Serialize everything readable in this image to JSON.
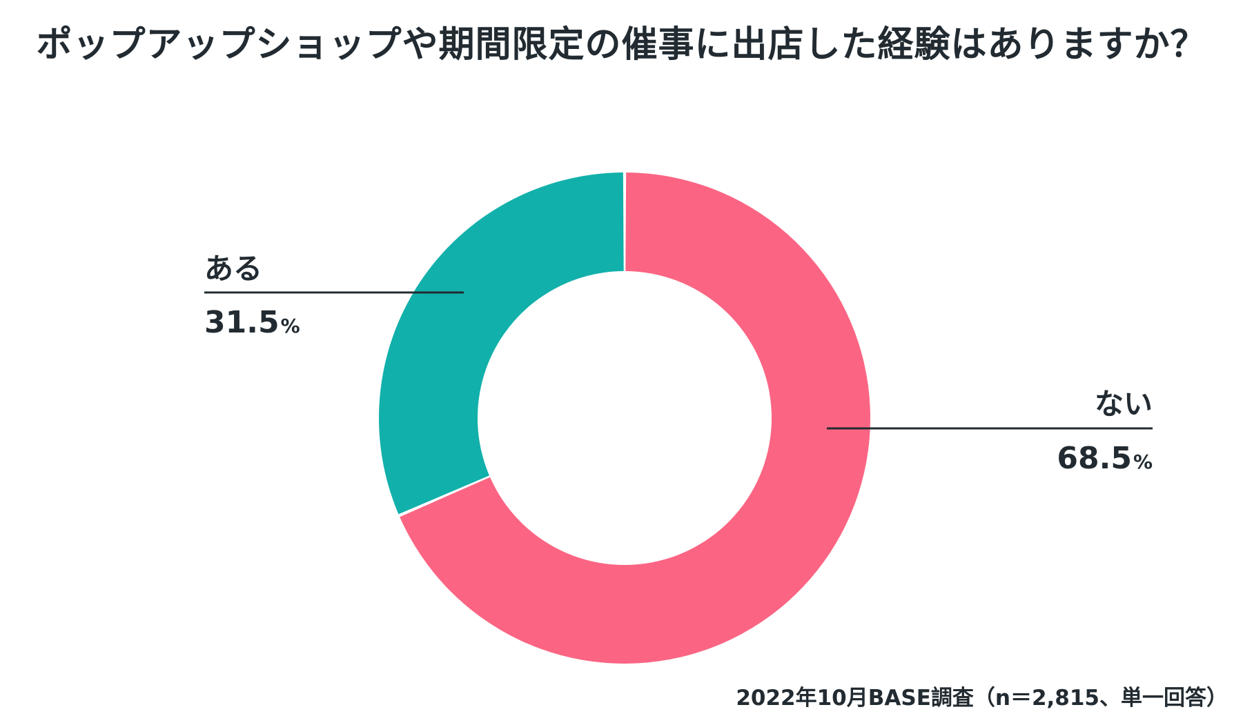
{
  "chart_data": {
    "type": "pie",
    "style": "donut",
    "title": "ポップアップショップや期間限定の催事に出店した経験はありますか？",
    "slices": [
      {
        "label": "ない",
        "value": 68.5,
        "display": "68.5",
        "unit": "%",
        "color": "#fb6583"
      },
      {
        "label": "ある",
        "value": 31.5,
        "display": "31.5",
        "unit": "%",
        "color": "#12b0ab"
      }
    ],
    "legend": "none",
    "source": "2022年10月BASE調査（n＝2,815、単一回答）"
  }
}
